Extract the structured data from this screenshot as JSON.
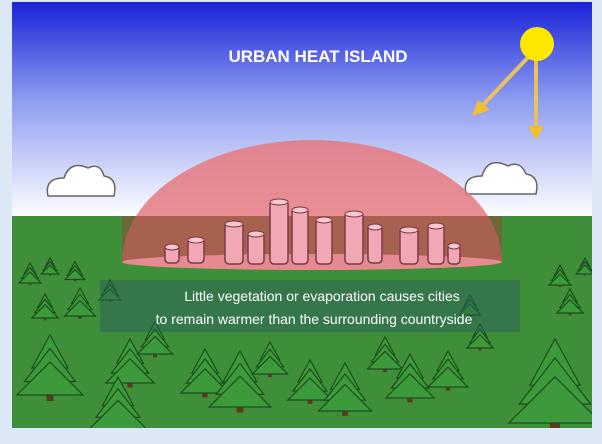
{
  "title": "URBAN HEAT ISLAND",
  "caption": {
    "lines": [
      "Little vegetation or evaporation causes cities",
      "to remain warmer than the surrounding countryside"
    ]
  }
}
